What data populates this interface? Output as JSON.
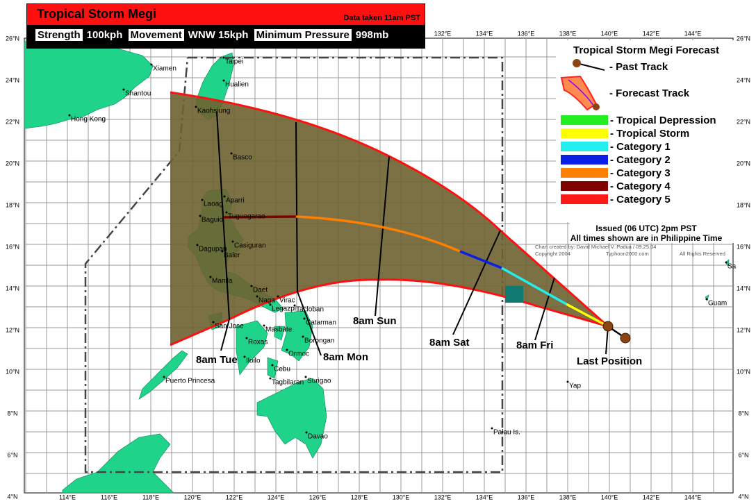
{
  "header": {
    "title": "Tropical Storm Megi",
    "data_taken": "Data taken 11am PST",
    "stats": [
      {
        "label": "Strength",
        "value": "100kph"
      },
      {
        "label": "Movement",
        "value": "WNW 15kph"
      },
      {
        "label": "Minimum Pressure",
        "value": "998mb"
      }
    ]
  },
  "map": {
    "longitude_labels": [
      "114°E",
      "116°E",
      "118°E",
      "120°E",
      "122°E",
      "124°E",
      "126°E",
      "128°E",
      "130°E",
      "132°E",
      "134°E",
      "136°E",
      "138°E",
      "140°E",
      "142°E",
      "144°E"
    ],
    "latitude_labels": [
      "26°N",
      "24°N",
      "22°N",
      "20°N",
      "18°N",
      "16°N",
      "14°N",
      "12°N",
      "10°N",
      "8°N",
      "6°N",
      "4°N"
    ],
    "places": [
      "Xiamen",
      "Shantou",
      "Hong Kong",
      "Taipei",
      "Hualien",
      "Kaohsiung",
      "Basco",
      "Aparri",
      "Laoag",
      "Tuguegarao",
      "Baguio",
      "Casiguran",
      "Dagupan",
      "Baler",
      "Manila",
      "Daet",
      "Naga",
      "Virac",
      "Legazpi",
      "Masbate",
      "Catarman",
      "San Jose",
      "Roxas",
      "Borongan",
      "Tacloban",
      "Iloilo",
      "Ormoc",
      "Cebu",
      "Tagbilaran",
      "Surigao",
      "Puerto Princesa",
      "Davao",
      "Yap",
      "Palau Is.",
      "Guam",
      "Sa"
    ],
    "time_labels": [
      "8am Tue",
      "8am Mon",
      "8am Sun",
      "8am Sat",
      "8am Fri"
    ],
    "last_position": "Last Position"
  },
  "legend": {
    "title": "Tropical Storm Megi Forecast",
    "past_track": "- Past Track",
    "forecast_track": "- Forecast Track",
    "categories": [
      {
        "label": "- Tropical Depression",
        "color": "#22ee22"
      },
      {
        "label": "- Tropical Storm",
        "color": "#ffff00"
      },
      {
        "label": "- Category 1",
        "color": "#22eeee"
      },
      {
        "label": "- Category 2",
        "color": "#0a1ee6"
      },
      {
        "label": "- Category 3",
        "color": "#ff8000"
      },
      {
        "label": "- Category 4",
        "color": "#800000"
      },
      {
        "label": "- Category 5",
        "color": "#ff1a1a"
      }
    ]
  },
  "issued": "Issued (06 UTC) 2pm PST",
  "times_note": "All times shown are in Philippine Time",
  "credits": [
    "Chart created by:  David Michael V. Padua / 09.25.04",
    "Copyright 2004",
    "Typhoon2000.com",
    "All Rights Reserved"
  ]
}
